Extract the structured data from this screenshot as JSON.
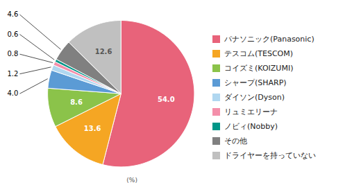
{
  "chart_data": {
    "type": "pie",
    "categories": [
      "パナソニック(Panasonic)",
      "テスコム(TESCOM)",
      "コイズミ(KOIZUMI)",
      "シャープ(SHARP)",
      "ダイソン(Dyson)",
      "リュミエリーナ",
      "ノビィ(Nobby)",
      "その他",
      "ドライヤーを持っていない"
    ],
    "values": [
      54.0,
      13.6,
      8.6,
      4.0,
      1.2,
      0.8,
      0.6,
      4.6,
      12.6
    ],
    "value_labels": [
      "54.0",
      "13.6",
      "8.6",
      "4.0",
      "1.2",
      "0.8",
      "0.6",
      "4.6",
      "12.6"
    ],
    "colors": [
      "#e8637a",
      "#f5a623",
      "#8bc34a",
      "#5b9bd5",
      "#b0d7f0",
      "#f48faa",
      "#009688",
      "#808080",
      "#c0c0c0"
    ],
    "annotations": [
      "(%)"
    ],
    "data_labels": true,
    "legend": "right"
  }
}
